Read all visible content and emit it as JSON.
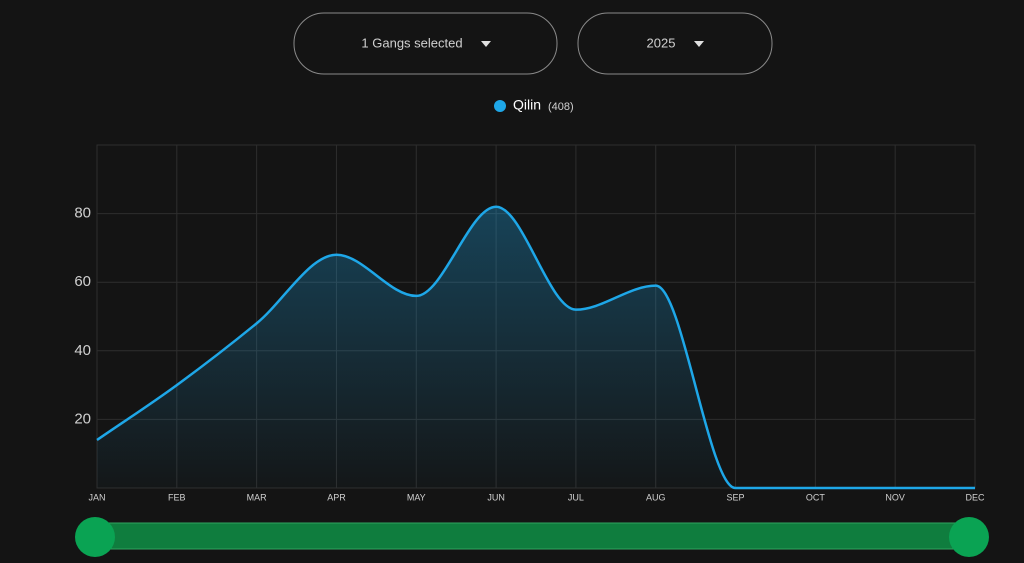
{
  "controls": {
    "gang_select": "1 Gangs selected",
    "year_select": "2025"
  },
  "chart_data": {
    "type": "line",
    "categories": [
      "JAN",
      "FEB",
      "MAR",
      "APR",
      "MAY",
      "JUN",
      "JUL",
      "AUG",
      "SEP",
      "OCT",
      "NOV",
      "DEC"
    ],
    "series": [
      {
        "name": "Qilin",
        "total_label": "(408)",
        "color": "#1ea7e8",
        "values": [
          14,
          30,
          48,
          68,
          56,
          82,
          52,
          59,
          0,
          0,
          0,
          0
        ]
      }
    ],
    "ylim": [
      0,
      100
    ],
    "yticks": [
      20,
      40,
      60,
      80
    ],
    "grid": true
  }
}
